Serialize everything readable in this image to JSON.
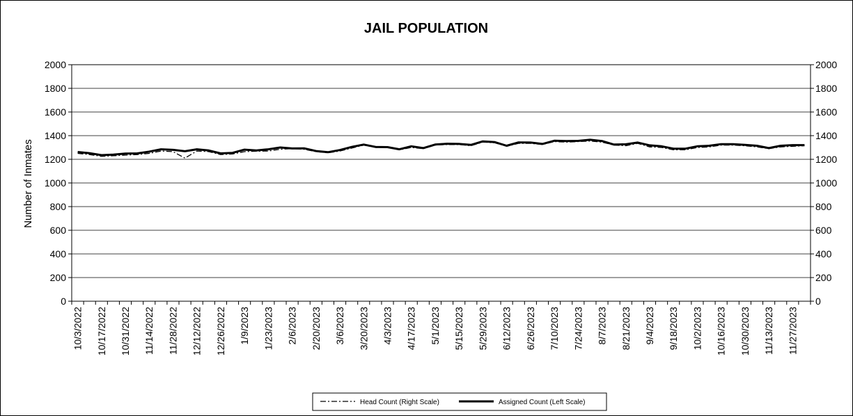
{
  "chart_data": {
    "type": "line",
    "title": "JAIL POPULATION",
    "ylabel": "Number of Inmates",
    "ylim": [
      0,
      2000
    ],
    "y2lim": [
      0,
      2000
    ],
    "yticks": [
      0,
      200,
      400,
      600,
      800,
      1000,
      1200,
      1400,
      1600,
      1800,
      2000
    ],
    "grid": true,
    "legend_position": "bottom",
    "x_tick_labels": [
      "10/3/2022",
      "10/17/2022",
      "10/31/2022",
      "11/14/2022",
      "11/28/2022",
      "12/12/2022",
      "12/26/2022",
      "1/9/2023",
      "1/23/2023",
      "2/6/2023",
      "2/20/2023",
      "3/6/2023",
      "3/20/2023",
      "4/3/2023",
      "4/17/2023",
      "5/1/2023",
      "5/15/2023",
      "5/29/2023",
      "6/12/2023",
      "6/26/2023",
      "7/10/2023",
      "7/24/2023",
      "8/7/2023",
      "8/21/2023",
      "9/4/2023",
      "9/18/2023",
      "10/2/2023",
      "10/16/2023",
      "10/30/2023",
      "11/13/2023",
      "11/27/2023"
    ],
    "x": [
      "10/3/2022",
      "10/10/2022",
      "10/17/2022",
      "10/24/2022",
      "10/31/2022",
      "11/7/2022",
      "11/14/2022",
      "11/21/2022",
      "11/28/2022",
      "12/5/2022",
      "12/12/2022",
      "12/19/2022",
      "12/26/2022",
      "1/2/2023",
      "1/9/2023",
      "1/16/2023",
      "1/23/2023",
      "1/30/2023",
      "2/6/2023",
      "2/13/2023",
      "2/20/2023",
      "2/27/2023",
      "3/6/2023",
      "3/13/2023",
      "3/20/2023",
      "3/27/2023",
      "4/3/2023",
      "4/10/2023",
      "4/17/2023",
      "4/24/2023",
      "5/1/2023",
      "5/8/2023",
      "5/15/2023",
      "5/22/2023",
      "5/29/2023",
      "6/5/2023",
      "6/12/2023",
      "6/19/2023",
      "6/26/2023",
      "7/3/2023",
      "7/10/2023",
      "7/17/2023",
      "7/24/2023",
      "7/31/2023",
      "8/7/2023",
      "8/14/2023",
      "8/21/2023",
      "8/28/2023",
      "9/4/2023",
      "9/11/2023",
      "9/18/2023",
      "9/25/2023",
      "10/2/2023",
      "10/9/2023",
      "10/16/2023",
      "10/23/2023",
      "10/30/2023",
      "11/6/2023",
      "11/13/2023",
      "11/20/2023",
      "11/27/2023",
      "12/4/2023"
    ],
    "series": [
      {
        "name": "Head Count (Right Scale)",
        "axis": "right",
        "style": "dash-dot",
        "values": [
          1250,
          1240,
          1225,
          1230,
          1235,
          1240,
          1250,
          1270,
          1265,
          1210,
          1270,
          1265,
          1240,
          1245,
          1265,
          1268,
          1270,
          1285,
          1290,
          1285,
          1265,
          1255,
          1270,
          1295,
          1320,
          1300,
          1300,
          1280,
          1300,
          1290,
          1320,
          1325,
          1325,
          1315,
          1345,
          1340,
          1310,
          1335,
          1335,
          1325,
          1350,
          1345,
          1350,
          1355,
          1345,
          1320,
          1315,
          1335,
          1305,
          1300,
          1280,
          1280,
          1300,
          1305,
          1320,
          1320,
          1315,
          1305,
          1290,
          1305,
          1310,
          1315
        ]
      },
      {
        "name": "Assigned Count (Left Scale)",
        "axis": "left",
        "style": "solid",
        "values": [
          1262,
          1252,
          1235,
          1240,
          1248,
          1250,
          1265,
          1285,
          1280,
          1268,
          1285,
          1275,
          1250,
          1255,
          1282,
          1275,
          1285,
          1300,
          1292,
          1293,
          1270,
          1260,
          1278,
          1305,
          1325,
          1305,
          1303,
          1285,
          1310,
          1295,
          1325,
          1332,
          1330,
          1322,
          1352,
          1345,
          1315,
          1343,
          1342,
          1330,
          1357,
          1355,
          1356,
          1365,
          1355,
          1325,
          1327,
          1342,
          1318,
          1310,
          1290,
          1290,
          1310,
          1315,
          1328,
          1328,
          1322,
          1315,
          1295,
          1315,
          1320,
          1320
        ]
      }
    ]
  }
}
